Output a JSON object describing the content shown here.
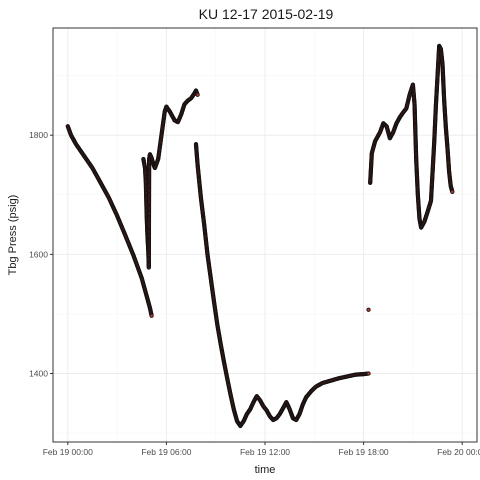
{
  "chart_data": {
    "type": "scatter",
    "title": "KU 12-17 2015-02-19",
    "xlabel": "time",
    "ylabel": "Tbg Press (psig)",
    "x_unit": "hours since Feb 19 00:00",
    "xlim": [
      -0.9,
      24.9
    ],
    "ylim": [
      1285,
      1980
    ],
    "x_ticks": [
      {
        "value": 0,
        "label": "Feb 19 00:00"
      },
      {
        "value": 6,
        "label": "Feb 19 06:00"
      },
      {
        "value": 12,
        "label": "Feb 19 12:00"
      },
      {
        "value": 18,
        "label": "Feb 19 18:00"
      },
      {
        "value": 24,
        "label": "Feb 20 00:00"
      }
    ],
    "y_ticks": [
      1400,
      1600,
      1800
    ],
    "grid": true,
    "marker_fill": "#c0392b",
    "marker_stroke": "#111111",
    "series": [
      {
        "name": "Tbg Press",
        "segments": [
          [
            [
              0.0,
              1815
            ],
            [
              0.2,
              1800
            ],
            [
              0.5,
              1785
            ],
            [
              1.0,
              1765
            ],
            [
              1.5,
              1745
            ],
            [
              2.0,
              1720
            ],
            [
              2.5,
              1695
            ],
            [
              3.0,
              1665
            ],
            [
              3.5,
              1632
            ],
            [
              4.0,
              1598
            ],
            [
              4.5,
              1560
            ],
            [
              4.8,
              1530
            ],
            [
              5.0,
              1510
            ],
            [
              5.1,
              1497
            ]
          ],
          [
            [
              4.6,
              1760
            ],
            [
              4.7,
              1745
            ],
            [
              4.75,
              1720
            ],
            [
              4.8,
              1665
            ],
            [
              4.85,
              1630
            ],
            [
              4.9,
              1605
            ],
            [
              4.93,
              1578
            ],
            [
              4.95,
              1760
            ],
            [
              5.0,
              1768
            ],
            [
              5.1,
              1762
            ],
            [
              5.2,
              1752
            ],
            [
              5.3,
              1745
            ],
            [
              5.5,
              1760
            ],
            [
              5.7,
              1800
            ],
            [
              5.9,
              1840
            ],
            [
              6.0,
              1848
            ],
            [
              6.2,
              1840
            ],
            [
              6.5,
              1825
            ],
            [
              6.7,
              1822
            ],
            [
              6.9,
              1835
            ],
            [
              7.1,
              1852
            ],
            [
              7.3,
              1858
            ],
            [
              7.5,
              1862
            ],
            [
              7.7,
              1870
            ],
            [
              7.8,
              1875
            ],
            [
              7.9,
              1868
            ]
          ],
          [
            [
              7.8,
              1785
            ],
            [
              7.9,
              1750
            ],
            [
              8.1,
              1695
            ],
            [
              8.3,
              1650
            ],
            [
              8.5,
              1600
            ],
            [
              8.7,
              1560
            ],
            [
              8.9,
              1520
            ],
            [
              9.1,
              1482
            ],
            [
              9.3,
              1450
            ],
            [
              9.5,
              1420
            ],
            [
              9.7,
              1392
            ],
            [
              9.9,
              1365
            ],
            [
              10.1,
              1340
            ],
            [
              10.3,
              1320
            ],
            [
              10.5,
              1312
            ],
            [
              10.7,
              1320
            ],
            [
              10.9,
              1332
            ],
            [
              11.1,
              1340
            ],
            [
              11.3,
              1352
            ],
            [
              11.5,
              1362
            ],
            [
              11.7,
              1355
            ],
            [
              11.9,
              1345
            ],
            [
              12.1,
              1338
            ],
            [
              12.3,
              1328
            ],
            [
              12.5,
              1322
            ],
            [
              12.7,
              1325
            ],
            [
              12.9,
              1332
            ],
            [
              13.1,
              1342
            ],
            [
              13.3,
              1352
            ],
            [
              13.5,
              1340
            ],
            [
              13.7,
              1325
            ],
            [
              13.9,
              1322
            ],
            [
              14.1,
              1332
            ],
            [
              14.3,
              1348
            ],
            [
              14.5,
              1360
            ],
            [
              14.8,
              1370
            ],
            [
              15.1,
              1378
            ],
            [
              15.5,
              1384
            ],
            [
              16.0,
              1388
            ],
            [
              16.5,
              1392
            ],
            [
              17.0,
              1395
            ],
            [
              17.5,
              1398
            ],
            [
              18.0,
              1399
            ],
            [
              18.3,
              1400
            ]
          ],
          [
            [
              18.3,
              1507
            ]
          ],
          [
            [
              18.4,
              1720
            ],
            [
              18.5,
              1770
            ],
            [
              18.7,
              1790
            ],
            [
              19.0,
              1805
            ],
            [
              19.2,
              1820
            ],
            [
              19.4,
              1815
            ],
            [
              19.6,
              1795
            ],
            [
              19.8,
              1805
            ],
            [
              20.0,
              1820
            ],
            [
              20.2,
              1830
            ],
            [
              20.4,
              1838
            ],
            [
              20.6,
              1845
            ],
            [
              20.8,
              1868
            ],
            [
              21.0,
              1885
            ],
            [
              21.1,
              1852
            ],
            [
              21.2,
              1760
            ],
            [
              21.3,
              1700
            ],
            [
              21.4,
              1660
            ],
            [
              21.5,
              1645
            ],
            [
              21.7,
              1655
            ],
            [
              21.9,
              1672
            ],
            [
              22.1,
              1690
            ],
            [
              22.2,
              1740
            ],
            [
              22.3,
              1790
            ],
            [
              22.4,
              1850
            ],
            [
              22.5,
              1900
            ],
            [
              22.6,
              1950
            ],
            [
              22.7,
              1945
            ],
            [
              22.8,
              1920
            ],
            [
              22.9,
              1860
            ],
            [
              23.0,
              1815
            ],
            [
              23.1,
              1780
            ],
            [
              23.2,
              1740
            ],
            [
              23.3,
              1715
            ],
            [
              23.4,
              1705
            ]
          ]
        ]
      }
    ]
  }
}
